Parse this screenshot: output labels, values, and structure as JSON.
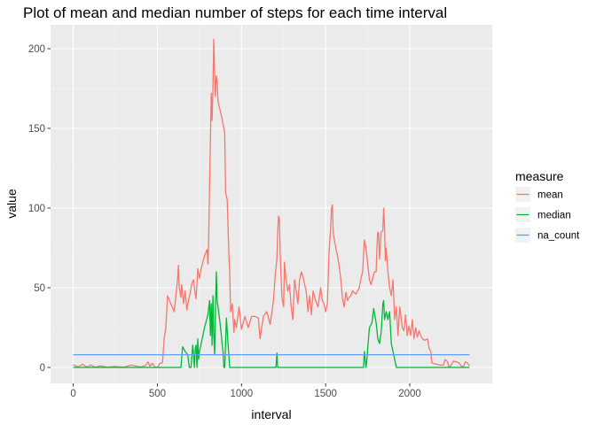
{
  "chart_data": {
    "type": "line",
    "title": "Plot of mean and median number of steps for each time interval",
    "xlabel": "interval",
    "ylabel": "value",
    "xlim": [
      -135,
      2490
    ],
    "ylim": [
      -10,
      215
    ],
    "xticks": [
      0,
      500,
      1000,
      1500,
      2000
    ],
    "yticks": [
      0,
      50,
      100,
      150,
      200
    ],
    "grid": true,
    "background": "#ebebeb",
    "legend": {
      "title": "measure",
      "position": "right"
    },
    "series": [
      {
        "name": "mean",
        "color": "#f8766d",
        "points": [
          [
            0,
            1.7
          ],
          [
            30,
            0.3
          ],
          [
            55,
            2
          ],
          [
            80,
            0.2
          ],
          [
            105,
            1.5
          ],
          [
            130,
            0.1
          ],
          [
            160,
            1
          ],
          [
            200,
            0.2
          ],
          [
            250,
            0.6
          ],
          [
            300,
            0.1
          ],
          [
            345,
            1.5
          ],
          [
            400,
            0.3
          ],
          [
            430,
            1.2
          ],
          [
            445,
            3.5
          ],
          [
            455,
            0.8
          ],
          [
            470,
            2.5
          ],
          [
            485,
            0.3
          ],
          [
            500,
            0.1
          ],
          [
            515,
            2.5
          ],
          [
            530,
            3
          ],
          [
            540,
            18
          ],
          [
            550,
            25
          ],
          [
            560,
            45
          ],
          [
            580,
            40
          ],
          [
            600,
            35
          ],
          [
            610,
            45
          ],
          [
            620,
            55
          ],
          [
            625,
            64
          ],
          [
            630,
            50
          ],
          [
            640,
            44
          ],
          [
            645,
            52
          ],
          [
            655,
            40
          ],
          [
            665,
            48
          ],
          [
            675,
            36
          ],
          [
            685,
            42
          ],
          [
            695,
            47
          ],
          [
            705,
            53
          ],
          [
            715,
            55
          ],
          [
            720,
            50
          ],
          [
            730,
            43
          ],
          [
            740,
            62
          ],
          [
            750,
            56
          ],
          [
            760,
            62
          ],
          [
            770,
            66
          ],
          [
            780,
            70
          ],
          [
            795,
            74
          ],
          [
            800,
            65
          ],
          [
            805,
            80
          ],
          [
            810,
            115
          ],
          [
            815,
            140
          ],
          [
            820,
            172
          ],
          [
            825,
            155
          ],
          [
            830,
            175
          ],
          [
            835,
            206
          ],
          [
            840,
            185
          ],
          [
            845,
            170
          ],
          [
            850,
            183
          ],
          [
            855,
            180
          ],
          [
            860,
            167
          ],
          [
            880,
            158
          ],
          [
            900,
            147
          ],
          [
            905,
            110
          ],
          [
            915,
            105
          ],
          [
            925,
            70
          ],
          [
            930,
            60
          ],
          [
            935,
            35
          ],
          [
            945,
            40
          ],
          [
            955,
            22
          ],
          [
            960,
            30
          ],
          [
            970,
            25
          ],
          [
            985,
            38
          ],
          [
            1000,
            24
          ],
          [
            1020,
            32
          ],
          [
            1040,
            25
          ],
          [
            1060,
            32
          ],
          [
            1080,
            32
          ],
          [
            1100,
            31
          ],
          [
            1110,
            18
          ],
          [
            1120,
            25
          ],
          [
            1130,
            32
          ],
          [
            1150,
            35
          ],
          [
            1170,
            27
          ],
          [
            1190,
            42
          ],
          [
            1200,
            58
          ],
          [
            1210,
            68
          ],
          [
            1215,
            85
          ],
          [
            1220,
            95
          ],
          [
            1225,
            93
          ],
          [
            1230,
            70
          ],
          [
            1240,
            44
          ],
          [
            1250,
            38
          ],
          [
            1255,
            66
          ],
          [
            1265,
            55
          ],
          [
            1275,
            48
          ],
          [
            1285,
            52
          ],
          [
            1295,
            38
          ],
          [
            1305,
            30
          ],
          [
            1315,
            55
          ],
          [
            1325,
            48
          ],
          [
            1335,
            40
          ],
          [
            1345,
            55
          ],
          [
            1355,
            60
          ],
          [
            1365,
            57
          ],
          [
            1375,
            52
          ],
          [
            1385,
            47
          ],
          [
            1395,
            35
          ],
          [
            1405,
            45
          ],
          [
            1415,
            33
          ],
          [
            1425,
            48
          ],
          [
            1440,
            42
          ],
          [
            1455,
            38
          ],
          [
            1470,
            50
          ],
          [
            1480,
            42
          ],
          [
            1490,
            40
          ],
          [
            1500,
            35
          ],
          [
            1510,
            40
          ],
          [
            1520,
            72
          ],
          [
            1530,
            88
          ],
          [
            1535,
            100
          ],
          [
            1540,
            102
          ],
          [
            1545,
            84
          ],
          [
            1560,
            75
          ],
          [
            1570,
            70
          ],
          [
            1580,
            64
          ],
          [
            1590,
            55
          ],
          [
            1600,
            43
          ],
          [
            1610,
            38
          ],
          [
            1620,
            47
          ],
          [
            1630,
            42
          ],
          [
            1640,
            44
          ],
          [
            1650,
            45
          ],
          [
            1660,
            48
          ],
          [
            1680,
            46
          ],
          [
            1700,
            50
          ],
          [
            1710,
            56
          ],
          [
            1720,
            60
          ],
          [
            1730,
            80
          ],
          [
            1740,
            75
          ],
          [
            1750,
            65
          ],
          [
            1760,
            55
          ],
          [
            1770,
            52
          ],
          [
            1790,
            60
          ],
          [
            1800,
            60
          ],
          [
            1805,
            75
          ],
          [
            1810,
            85
          ],
          [
            1815,
            84
          ],
          [
            1820,
            68
          ],
          [
            1830,
            85
          ],
          [
            1840,
            86
          ],
          [
            1845,
            100
          ],
          [
            1850,
            88
          ],
          [
            1855,
            67
          ],
          [
            1860,
            75
          ],
          [
            1870,
            60
          ],
          [
            1880,
            50
          ],
          [
            1890,
            45
          ],
          [
            1900,
            55
          ],
          [
            1910,
            30
          ],
          [
            1920,
            38
          ],
          [
            1930,
            20
          ],
          [
            1940,
            38
          ],
          [
            1950,
            30
          ],
          [
            1955,
            25
          ],
          [
            1965,
            23
          ],
          [
            1975,
            33
          ],
          [
            1985,
            20
          ],
          [
            1995,
            26
          ],
          [
            2005,
            20
          ],
          [
            2015,
            30
          ],
          [
            2025,
            18
          ],
          [
            2035,
            25
          ],
          [
            2045,
            19
          ],
          [
            2055,
            23
          ],
          [
            2065,
            20
          ],
          [
            2075,
            18
          ],
          [
            2090,
            17
          ],
          [
            2105,
            18
          ],
          [
            2115,
            12
          ],
          [
            2125,
            10
          ],
          [
            2130,
            3
          ],
          [
            2140,
            2.5
          ],
          [
            2160,
            2
          ],
          [
            2180,
            1.5
          ],
          [
            2200,
            1.5
          ],
          [
            2210,
            5
          ],
          [
            2225,
            3.5
          ],
          [
            2230,
            0.8
          ],
          [
            2240,
            0.6
          ],
          [
            2260,
            4
          ],
          [
            2290,
            3
          ],
          [
            2305,
            1
          ],
          [
            2320,
            0.5
          ],
          [
            2330,
            3.5
          ],
          [
            2340,
            3
          ],
          [
            2355,
            1
          ]
        ]
      },
      {
        "name": "median",
        "color": "#00ba38",
        "points": [
          [
            0,
            0
          ],
          [
            640,
            0
          ],
          [
            650,
            13
          ],
          [
            665,
            10
          ],
          [
            680,
            8
          ],
          [
            690,
            0
          ],
          [
            700,
            0
          ],
          [
            710,
            14
          ],
          [
            715,
            8
          ],
          [
            720,
            0
          ],
          [
            725,
            12
          ],
          [
            730,
            14
          ],
          [
            735,
            0
          ],
          [
            740,
            18
          ],
          [
            745,
            5
          ],
          [
            750,
            10
          ],
          [
            760,
            15
          ],
          [
            780,
            25
          ],
          [
            800,
            33
          ],
          [
            810,
            42
          ],
          [
            815,
            20
          ],
          [
            820,
            40
          ],
          [
            825,
            14
          ],
          [
            830,
            45
          ],
          [
            835,
            20
          ],
          [
            840,
            8
          ],
          [
            845,
            35
          ],
          [
            850,
            60
          ],
          [
            855,
            42
          ],
          [
            860,
            38
          ],
          [
            870,
            30
          ],
          [
            880,
            20
          ],
          [
            885,
            14
          ],
          [
            890,
            10
          ],
          [
            895,
            0
          ],
          [
            900,
            0
          ],
          [
            910,
            31
          ],
          [
            920,
            15
          ],
          [
            930,
            0
          ],
          [
            1205,
            0
          ],
          [
            1210,
            9
          ],
          [
            1215,
            0
          ],
          [
            1725,
            0
          ],
          [
            1730,
            10
          ],
          [
            1740,
            0
          ],
          [
            1745,
            5
          ],
          [
            1750,
            12
          ],
          [
            1760,
            25
          ],
          [
            1775,
            28
          ],
          [
            1785,
            37
          ],
          [
            1800,
            28
          ],
          [
            1810,
            18
          ],
          [
            1820,
            15
          ],
          [
            1830,
            22
          ],
          [
            1840,
            40
          ],
          [
            1845,
            42
          ],
          [
            1850,
            30
          ],
          [
            1860,
            35
          ],
          [
            1870,
            30
          ],
          [
            1880,
            35
          ],
          [
            1890,
            15
          ],
          [
            1900,
            10
          ],
          [
            1910,
            5
          ],
          [
            1920,
            0
          ],
          [
            2355,
            0
          ]
        ]
      },
      {
        "name": "na_count",
        "color": "#619cff",
        "points": [
          [
            0,
            8
          ],
          [
            2355,
            8
          ]
        ]
      }
    ]
  }
}
